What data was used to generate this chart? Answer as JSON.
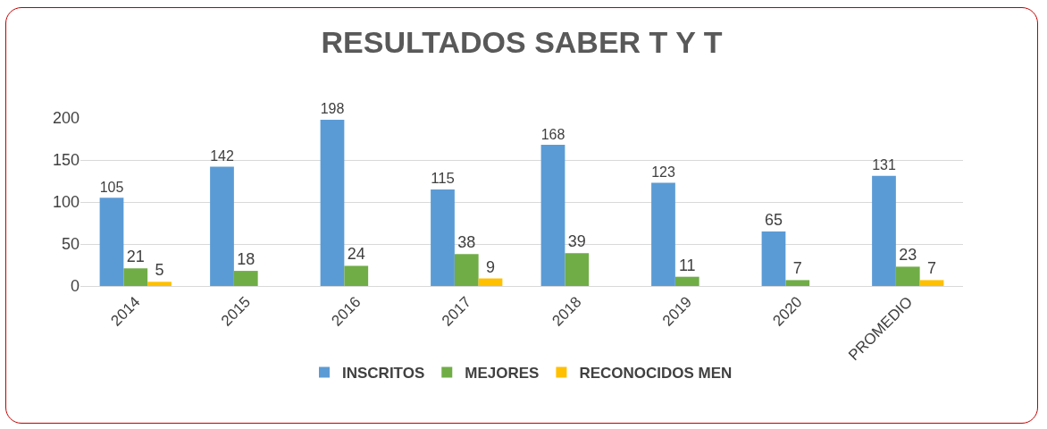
{
  "chart_data": {
    "type": "bar",
    "title": "RESULTADOS SABER T Y T",
    "categories": [
      "2014",
      "2015",
      "2016",
      "2017",
      "2018",
      "2019",
      "2020",
      "PROMEDIO"
    ],
    "series": [
      {
        "name": "INSCRITOS",
        "color": "#5b9bd5",
        "values": [
          105,
          142,
          198,
          115,
          168,
          123,
          65,
          131
        ]
      },
      {
        "name": "MEJORES",
        "color": "#70ad47",
        "values": [
          21,
          18,
          24,
          38,
          39,
          11,
          7,
          23
        ]
      },
      {
        "name": "RECONOCIDOS MEN",
        "color": "#ffc000",
        "values": [
          5,
          null,
          null,
          9,
          null,
          null,
          null,
          7
        ]
      }
    ],
    "ylim": [
      0,
      200
    ],
    "yticks": [
      0,
      50,
      100,
      150,
      200
    ],
    "grid": "y",
    "legend": "bottom",
    "data_labels": true
  }
}
